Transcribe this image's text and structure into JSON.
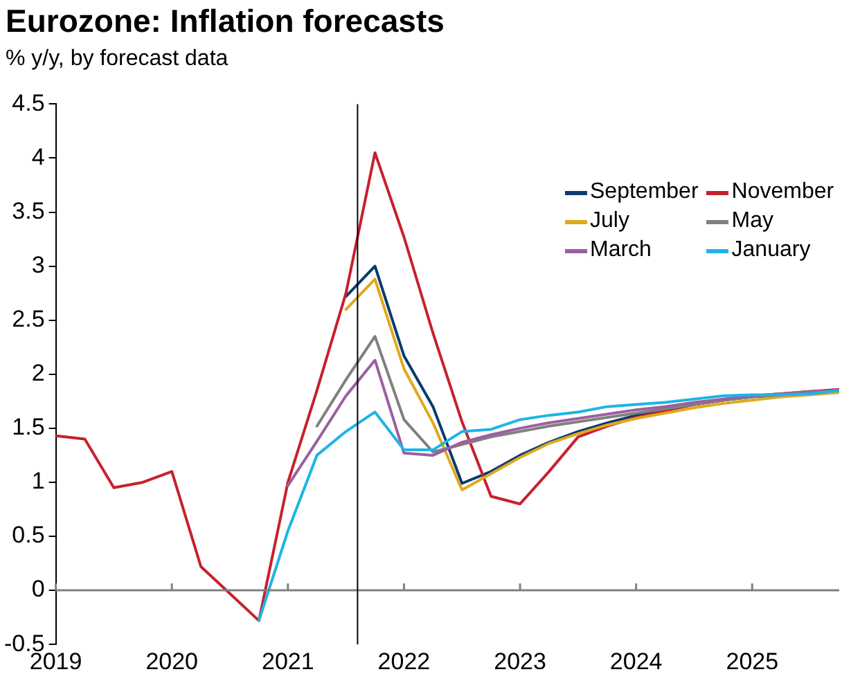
{
  "chart_data": {
    "type": "line",
    "title": "Eurozone: Inflation forecasts",
    "subtitle": "% y/y, by forecast data",
    "xlim": [
      2019,
      2025.75
    ],
    "xticks": [
      2019,
      2020,
      2021,
      2022,
      2023,
      2024,
      2025
    ],
    "ylim": [
      -0.5,
      4.5
    ],
    "yticks": [
      -0.5,
      0,
      0.5,
      1,
      1.5,
      2,
      2.5,
      3,
      3.5,
      4,
      4.5
    ],
    "grid": false,
    "legend": "top right",
    "marker": "none",
    "line_style": "solid",
    "ref_lines": [
      {
        "axis": "x",
        "value": 2021.6,
        "color": "#000000"
      }
    ],
    "series": [
      {
        "name": "September",
        "color": "#0b3a6e",
        "x": [
          2021.5,
          2021.75,
          2022,
          2022.25,
          2022.5,
          2022.75,
          2023,
          2023.25,
          2023.5,
          2023.75,
          2024,
          2024.25,
          2024.5,
          2024.75,
          2025,
          2025.25,
          2025.5,
          2025.75
        ],
        "values": [
          2.72,
          3.0,
          2.17,
          1.7,
          0.99,
          1.1,
          1.25,
          1.37,
          1.47,
          1.55,
          1.62,
          1.67,
          1.72,
          1.76,
          1.79,
          1.81,
          1.83,
          1.85
        ]
      },
      {
        "name": "November",
        "color": "#c8202f",
        "x": [
          2019,
          2019.25,
          2019.5,
          2019.75,
          2020,
          2020.25,
          2020.5,
          2020.75,
          2021,
          2021.25,
          2021.5,
          2021.75,
          2022,
          2022.25,
          2022.5,
          2022.75,
          2023,
          2023.25,
          2023.5,
          2023.75,
          2024,
          2024.25,
          2024.5,
          2024.75,
          2025,
          2025.25,
          2025.5,
          2025.75
        ],
        "values": [
          1.43,
          1.4,
          0.95,
          1.0,
          1.1,
          0.22,
          -0.03,
          -0.28,
          1.0,
          1.85,
          2.75,
          4.05,
          3.27,
          2.38,
          1.56,
          0.87,
          0.8,
          1.1,
          1.42,
          1.52,
          1.6,
          1.66,
          1.72,
          1.76,
          1.8,
          1.82,
          1.84,
          1.86
        ]
      },
      {
        "name": "July",
        "color": "#e0a91c",
        "x": [
          2021.5,
          2021.75,
          2022,
          2022.25,
          2022.5,
          2022.75,
          2023,
          2023.25,
          2023.5,
          2023.75,
          2024,
          2024.25,
          2024.5,
          2024.75,
          2025,
          2025.25,
          2025.5,
          2025.75
        ],
        "values": [
          2.6,
          2.88,
          2.05,
          1.55,
          0.93,
          1.08,
          1.23,
          1.36,
          1.45,
          1.53,
          1.59,
          1.64,
          1.69,
          1.73,
          1.76,
          1.79,
          1.81,
          1.83
        ]
      },
      {
        "name": "May",
        "color": "#808080",
        "x": [
          2021.25,
          2021.5,
          2021.75,
          2022,
          2022.25,
          2022.5,
          2022.75,
          2023,
          2023.25,
          2023.5,
          2023.75,
          2024,
          2024.25,
          2024.5,
          2024.75,
          2025,
          2025.25,
          2025.5,
          2025.75
        ],
        "values": [
          1.52,
          1.95,
          2.35,
          1.58,
          1.28,
          1.35,
          1.42,
          1.47,
          1.52,
          1.56,
          1.6,
          1.64,
          1.68,
          1.72,
          1.76,
          1.79,
          1.81,
          1.83,
          1.85
        ]
      },
      {
        "name": "March",
        "color": "#9b5fa0",
        "x": [
          2021,
          2021.25,
          2021.5,
          2021.75,
          2022,
          2022.25,
          2022.5,
          2022.75,
          2023,
          2023.25,
          2023.5,
          2023.75,
          2024,
          2024.25,
          2024.5,
          2024.75,
          2025,
          2025.25,
          2025.5,
          2025.75
        ],
        "values": [
          0.97,
          1.38,
          1.8,
          2.13,
          1.27,
          1.25,
          1.37,
          1.44,
          1.5,
          1.55,
          1.59,
          1.63,
          1.67,
          1.7,
          1.74,
          1.77,
          1.8,
          1.82,
          1.84,
          1.85
        ]
      },
      {
        "name": "January",
        "color": "#1eb4e6",
        "x": [
          2020.75,
          2021,
          2021.25,
          2021.5,
          2021.75,
          2022,
          2022.25,
          2022.5,
          2022.75,
          2023,
          2023.25,
          2023.5,
          2023.75,
          2024,
          2024.25,
          2024.5,
          2024.75,
          2025,
          2025.25,
          2025.5,
          2025.75
        ],
        "values": [
          -0.28,
          0.55,
          1.25,
          1.47,
          1.65,
          1.3,
          1.3,
          1.47,
          1.49,
          1.58,
          1.62,
          1.65,
          1.7,
          1.72,
          1.74,
          1.77,
          1.8,
          1.81,
          1.81,
          1.82,
          1.85
        ]
      }
    ]
  }
}
